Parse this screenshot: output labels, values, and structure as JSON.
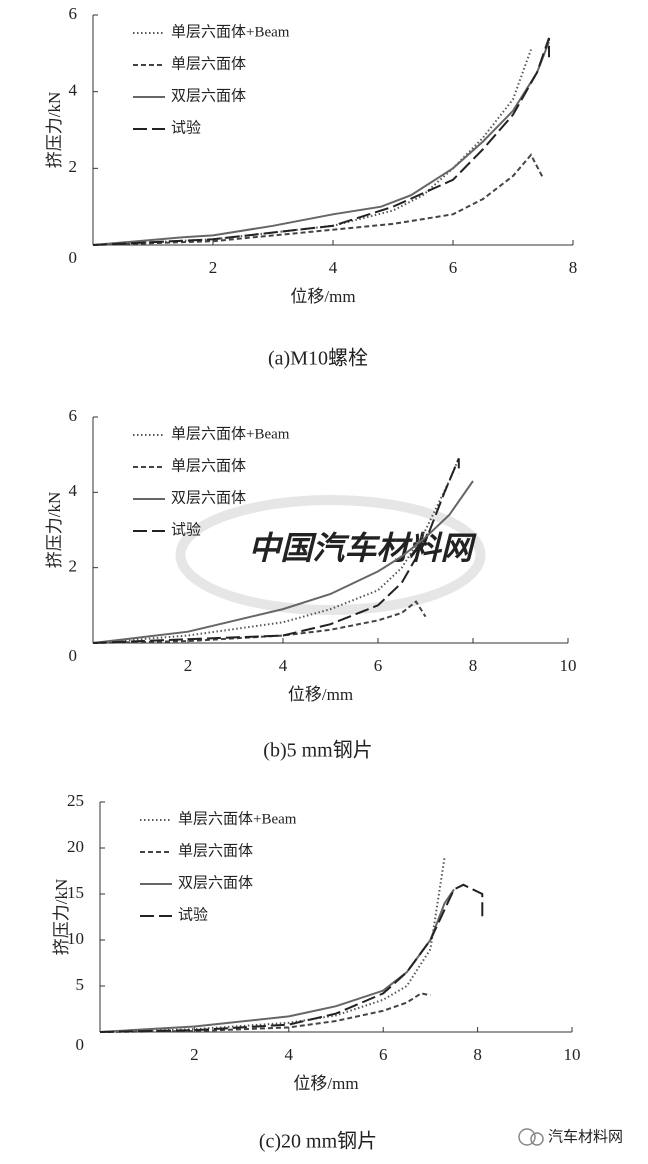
{
  "chart_data": [
    {
      "type": "line",
      "title": "(a)M10螺栓",
      "x_label": "位移/mm",
      "y_label": "挤压力/kN",
      "xlim": [
        0,
        8
      ],
      "ylim": [
        0,
        6
      ],
      "xticks": [
        2,
        4,
        6,
        8
      ],
      "yticks": [
        0,
        2,
        4,
        6
      ],
      "series": [
        {
          "name": "单层六面体+Beam",
          "color": "#555555",
          "line_style": "dotted",
          "x": [
            0,
            2,
            4,
            5,
            5.5,
            6,
            6.5,
            7,
            7.3
          ],
          "values": [
            0,
            0.15,
            0.5,
            0.9,
            1.3,
            2.0,
            2.8,
            3.8,
            5.1
          ]
        },
        {
          "name": "单层六面体",
          "color": "#444444",
          "line_style": "dashed",
          "x": [
            0,
            2,
            4,
            5,
            6,
            6.5,
            7,
            7.3,
            7.5
          ],
          "values": [
            0,
            0.1,
            0.4,
            0.55,
            0.8,
            1.2,
            1.8,
            2.35,
            1.75
          ]
        },
        {
          "name": "双层六面体",
          "color": "#666666",
          "line_style": "solid",
          "x": [
            0,
            1.5,
            2,
            3,
            4,
            4.8,
            5.3,
            6,
            6.5,
            7,
            7.4,
            7.6
          ],
          "values": [
            0,
            0.2,
            0.25,
            0.5,
            0.8,
            1.0,
            1.3,
            2.0,
            2.7,
            3.5,
            4.5,
            5.3
          ]
        },
        {
          "name": "试验",
          "color": "#222222",
          "line_style": "longdash",
          "x": [
            0,
            2,
            4,
            5,
            6,
            6.5,
            7,
            7.4,
            7.6,
            7.6
          ],
          "values": [
            0,
            0.15,
            0.5,
            1.0,
            1.7,
            2.5,
            3.4,
            4.5,
            5.4,
            4.9
          ]
        }
      ]
    },
    {
      "type": "line",
      "title": "(b)5 mm钢片",
      "x_label": "位移/mm",
      "y_label": "挤压力/kN",
      "watermark": "中国汽车材料网",
      "xlim": [
        0,
        10
      ],
      "ylim": [
        0,
        6
      ],
      "xticks": [
        2,
        4,
        6,
        8,
        10
      ],
      "yticks": [
        0,
        2,
        4,
        6
      ],
      "series": [
        {
          "name": "单层六面体+Beam",
          "color": "#555555",
          "line_style": "dotted",
          "x": [
            0,
            2,
            4,
            5,
            6,
            6.5,
            7,
            7.5,
            7.7
          ],
          "values": [
            0,
            0.2,
            0.55,
            0.9,
            1.4,
            2.0,
            3.0,
            4.3,
            4.9
          ]
        },
        {
          "name": "单层六面体",
          "color": "#444444",
          "line_style": "dashed",
          "x": [
            0,
            2,
            4,
            5,
            6,
            6.5,
            6.8,
            7.0
          ],
          "values": [
            0,
            0.05,
            0.2,
            0.35,
            0.6,
            0.8,
            1.1,
            0.7
          ]
        },
        {
          "name": "双层六面体",
          "color": "#666666",
          "line_style": "solid",
          "x": [
            0,
            2,
            4,
            5,
            6,
            6.5,
            7,
            7.5,
            8
          ],
          "values": [
            0,
            0.3,
            0.9,
            1.3,
            1.9,
            2.3,
            2.8,
            3.4,
            4.3
          ]
        },
        {
          "name": "试验",
          "color": "#222222",
          "line_style": "longdash",
          "x": [
            0,
            2,
            4,
            5,
            6,
            6.5,
            7,
            7.4,
            7.7,
            7.7
          ],
          "values": [
            0,
            0.1,
            0.2,
            0.5,
            1.0,
            1.6,
            2.7,
            4.0,
            4.9,
            4.5
          ]
        }
      ]
    },
    {
      "type": "line",
      "title": "(c)20 mm钢片",
      "x_label": "位移/mm",
      "y_label": "挤压力/kN",
      "xlim": [
        0,
        10
      ],
      "ylim": [
        0,
        25
      ],
      "xticks": [
        2,
        4,
        6,
        8,
        10
      ],
      "yticks": [
        0,
        5,
        10,
        15,
        20,
        25
      ],
      "series": [
        {
          "name": "单层六面体+Beam",
          "color": "#555555",
          "line_style": "dotted",
          "x": [
            0,
            2,
            4,
            5,
            6,
            6.5,
            7,
            7.3
          ],
          "values": [
            0,
            0.3,
            1.0,
            1.8,
            3.5,
            5,
            9,
            19
          ]
        },
        {
          "name": "单层六面体",
          "color": "#444444",
          "line_style": "dashed",
          "x": [
            0,
            2,
            4,
            5,
            6,
            6.5,
            6.8,
            7.0
          ],
          "values": [
            0,
            0.1,
            0.5,
            1.2,
            2.3,
            3.2,
            4.2,
            4.0
          ]
        },
        {
          "name": "双层六面体",
          "color": "#666666",
          "line_style": "solid",
          "x": [
            0,
            2,
            4,
            5,
            6,
            6.5,
            7,
            7.3,
            7.5
          ],
          "values": [
            0,
            0.6,
            1.7,
            2.8,
            4.5,
            6.5,
            10,
            14,
            15.5
          ]
        },
        {
          "name": "试验",
          "color": "#222222",
          "line_style": "longdash",
          "x": [
            0,
            2,
            4,
            5,
            6,
            6.5,
            7,
            7.5,
            7.7,
            8.1,
            8.1
          ],
          "values": [
            0,
            0.2,
            0.8,
            2.0,
            4.2,
            6.5,
            10,
            15.5,
            16,
            15,
            12.5
          ]
        }
      ]
    }
  ],
  "watermark": "汽车材料网"
}
